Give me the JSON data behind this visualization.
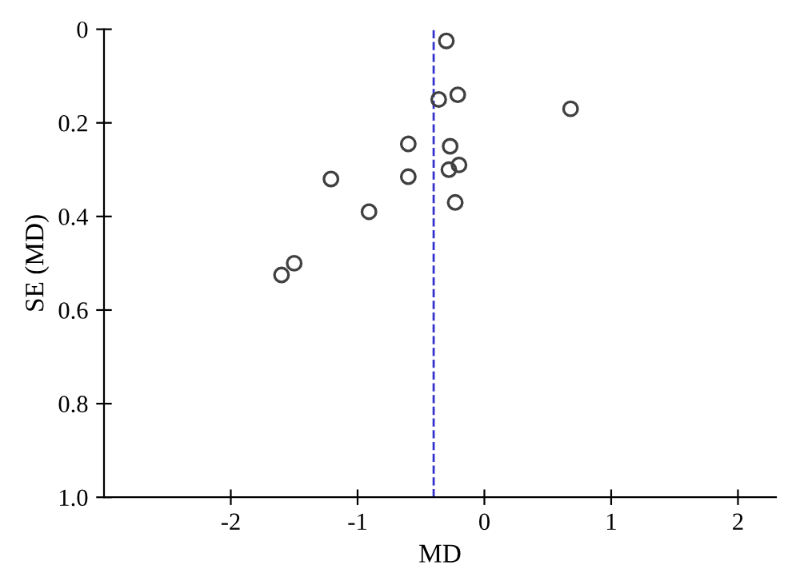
{
  "chart_data": {
    "type": "scatter",
    "xlabel": "MD",
    "ylabel": "SE (MD)",
    "x": [
      -0.3,
      -0.21,
      -0.36,
      0.68,
      -0.6,
      -0.27,
      -0.2,
      -0.28,
      -0.6,
      -1.21,
      -0.23,
      -0.91,
      -1.5,
      -1.6
    ],
    "series": [
      {
        "color": "#404040",
        "values": [
          0.025,
          0.14,
          0.15,
          0.17,
          0.245,
          0.25,
          0.29,
          0.3,
          0.315,
          0.32,
          0.37,
          0.39,
          0.5,
          0.525
        ]
      }
    ],
    "marker": "circle",
    "xlim": [
      -3,
      2.3
    ],
    "ylim": [
      1.0,
      0
    ],
    "xticks": [
      -2,
      -1,
      0,
      1,
      2
    ],
    "yticks": [
      0,
      0.2,
      0.4,
      0.6,
      0.8,
      {
        "value": 1.0,
        "label": "1.0"
      }
    ],
    "ref_lines": [
      {
        "axis": "x",
        "value": -0.4,
        "color": "#3333cc",
        "line_style": "dashed"
      }
    ],
    "grid": false
  }
}
